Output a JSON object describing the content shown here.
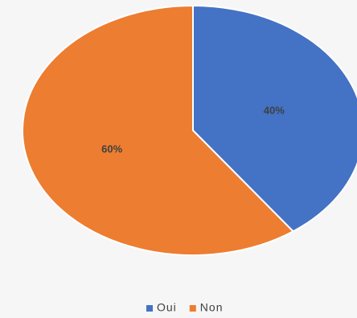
{
  "chart_data": {
    "type": "pie",
    "categories": [
      "Oui",
      "Non"
    ],
    "values": [
      40,
      60
    ],
    "value_labels": [
      "40%",
      "60%"
    ],
    "colors": [
      "#4472c4",
      "#ed7d31"
    ],
    "legend": "bottom"
  }
}
